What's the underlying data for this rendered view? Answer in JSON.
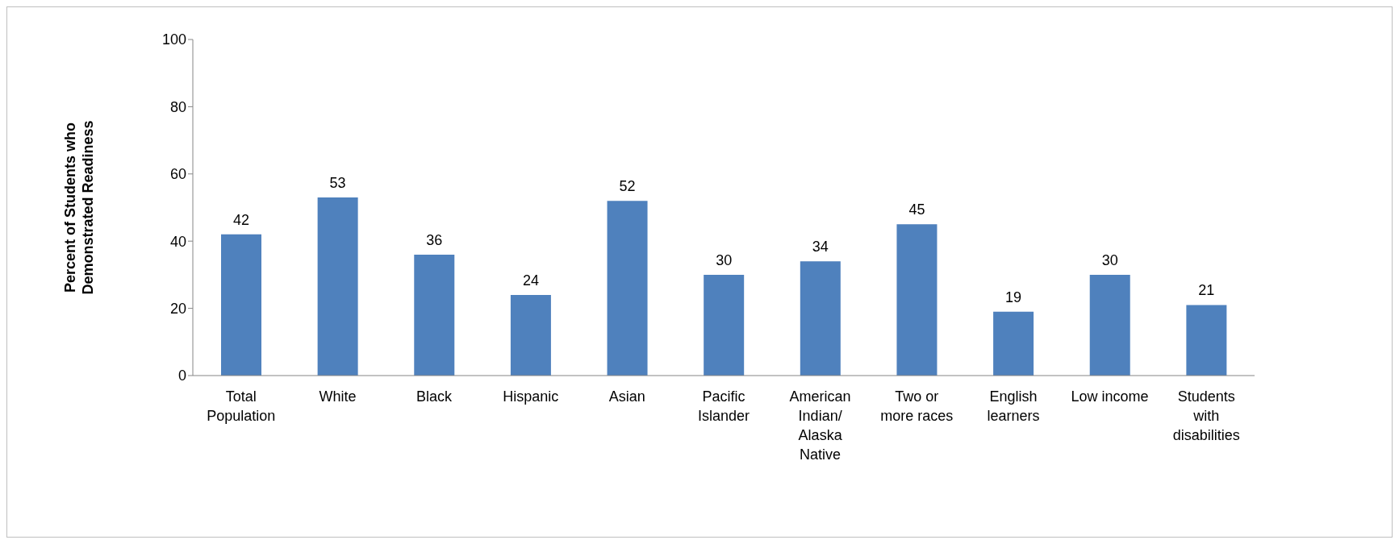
{
  "chart_data": {
    "type": "bar",
    "ylabel": "Percent of Students who Demonstrated Readiness",
    "categories": [
      "Total Population",
      "White",
      "Black",
      "Hispanic",
      "Asian",
      "Pacific Islander",
      "American Indian/ Alaska Native",
      "Two or more races",
      "English learners",
      "Low income",
      "Students with disabilities"
    ],
    "values": [
      42,
      53,
      36,
      24,
      52,
      30,
      34,
      45,
      19,
      30,
      21
    ],
    "color": "#4f81bd",
    "ylim": [
      0,
      100
    ],
    "yticks": [
      0,
      20,
      40,
      60,
      80,
      100
    ],
    "grid": false,
    "data_labels": true,
    "legend": false
  }
}
